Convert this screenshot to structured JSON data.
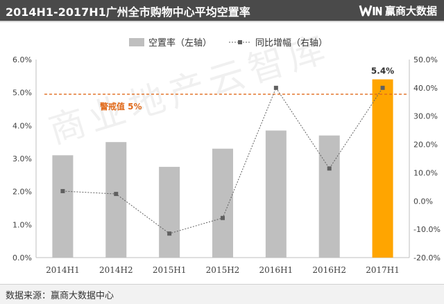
{
  "header": {
    "title": "2014H1-2017H1广州全市购物中心平均空置率",
    "brand_name": "赢商大数据",
    "brand_logo_icon": "winshang-logo-icon",
    "bg_color": "#4a4a4a"
  },
  "footer": {
    "source": "数据来源：赢商大数据中心"
  },
  "watermark": "商业地产云智库",
  "chart_data": {
    "type": "bar",
    "title": "2014H1-2017H1广州全市购物中心平均空置率",
    "categories": [
      "2014H1",
      "2014H2",
      "2015H1",
      "2015H2",
      "2016H1",
      "2016H2",
      "2017H1"
    ],
    "series": [
      {
        "name": "空置率（左轴）",
        "type": "bar",
        "axis": "left",
        "values": [
          3.1,
          3.5,
          2.75,
          3.3,
          3.85,
          3.7,
          5.4
        ],
        "colors": [
          "#bfbfbf",
          "#bfbfbf",
          "#bfbfbf",
          "#bfbfbf",
          "#bfbfbf",
          "#bfbfbf",
          "#ffa500"
        ],
        "data_labels": {
          "6": "5.4%"
        }
      },
      {
        "name": "同比增幅（右轴）",
        "type": "line",
        "axis": "right",
        "values": [
          3.5,
          2.5,
          -11.5,
          -6.0,
          40.0,
          11.5,
          40.0
        ],
        "color": "#606060",
        "style": "dotted-with-square-markers"
      }
    ],
    "y_left": {
      "range": [
        0,
        6
      ],
      "ticks": [
        0,
        1,
        2,
        3,
        4,
        5,
        6
      ],
      "tick_labels": [
        "0.0%",
        "1.0%",
        "2.0%",
        "3.0%",
        "4.0%",
        "5.0%",
        "6.0%"
      ]
    },
    "y_right": {
      "range": [
        -20,
        50
      ],
      "ticks": [
        -20,
        -10,
        0,
        10,
        20,
        30,
        40,
        50
      ],
      "tick_labels": [
        "-20.0%",
        "-10.0%",
        "0.0%",
        "10.0%",
        "20.0%",
        "30.0%",
        "40.0%",
        "50.0%"
      ]
    },
    "reference_line": {
      "axis": "left",
      "value": 4.95,
      "label": "警戒值 5%",
      "color": "#e06a1b",
      "style": "dashed"
    },
    "legend": {
      "position": "top-center",
      "entries": [
        "空置率（左轴）",
        "同比增幅（右轴）"
      ]
    },
    "grid": false
  }
}
